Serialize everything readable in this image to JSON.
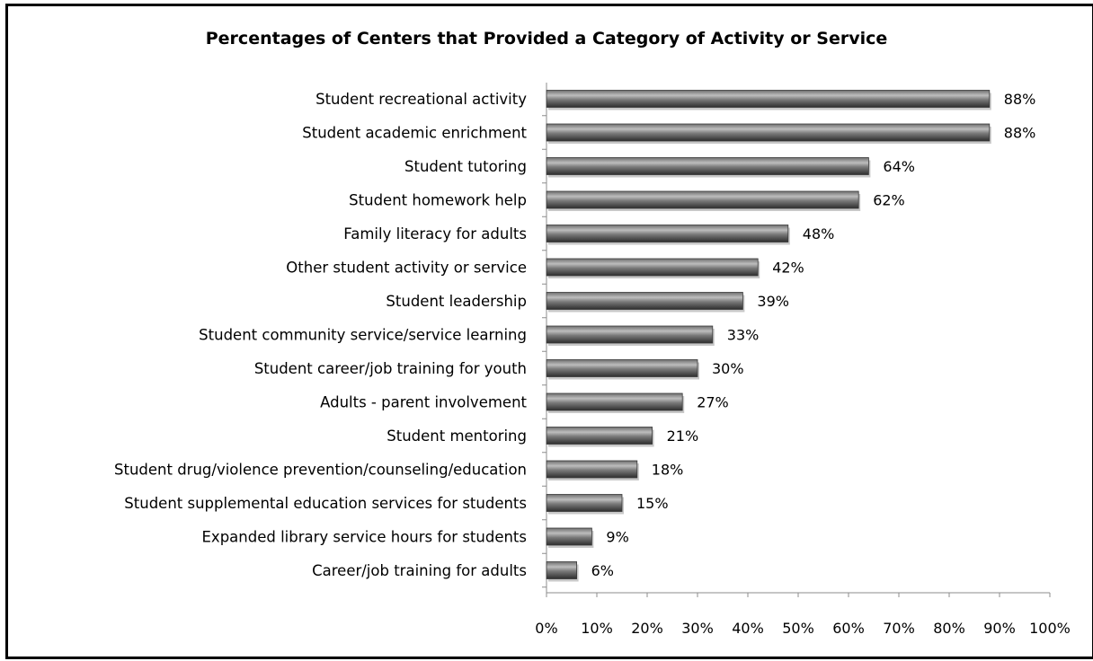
{
  "chart_data": {
    "type": "bar",
    "orientation": "horizontal",
    "title": "Percentages of Centers that Provided a Category of Activity or Service",
    "categories": [
      "Student recreational activity",
      "Student academic enrichment",
      "Student tutoring",
      "Student homework help",
      "Family literacy for adults",
      "Other student activity  or service",
      "Student leadership",
      "Student community service/service learning",
      "Student career/job training for youth",
      "Adults -  parent involvement",
      "Student mentoring",
      "Student drug/violence prevention/counseling/education",
      "Student supplemental education services for students",
      "Expanded library service hours for students",
      "Career/job training for adults"
    ],
    "values": [
      88,
      88,
      64,
      62,
      48,
      42,
      39,
      33,
      30,
      27,
      21,
      18,
      15,
      9,
      6
    ],
    "data_labels": [
      "88%",
      "88%",
      "64%",
      "62%",
      "48%",
      "42%",
      "39%",
      "33%",
      "30%",
      "27%",
      "21%",
      "18%",
      "15%",
      "9%",
      "6%"
    ],
    "xlim": [
      0,
      100
    ],
    "x_ticks": [
      "0%",
      "10%",
      "20%",
      "30%",
      "40%",
      "50%",
      "60%",
      "70%",
      "80%",
      "90%",
      "100%"
    ],
    "grid": false,
    "legend": "none",
    "bar_color": "#5a5a5a"
  }
}
